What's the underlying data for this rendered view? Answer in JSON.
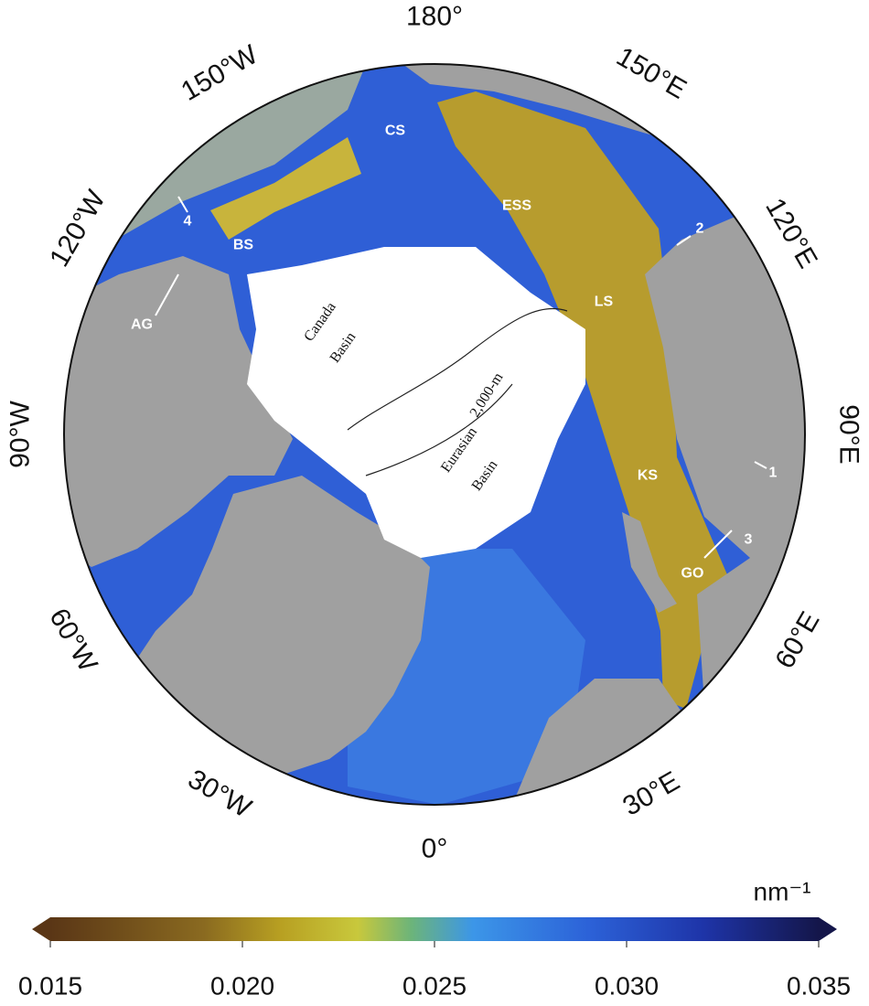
{
  "map": {
    "longitude_labels": [
      "180°",
      "150°E",
      "120°E",
      "90°E",
      "60°E",
      "30°E",
      "0°",
      "30°W",
      "60°W",
      "90°W",
      "120°W",
      "150°W"
    ],
    "region_labels": [
      "CS",
      "ESS",
      "BS",
      "LS",
      "KS",
      "GO",
      "AG",
      "4",
      "2",
      "1",
      "3"
    ],
    "basin_labels": [
      [
        "Canada",
        "Basin"
      ],
      [
        "Eurasian",
        "Basin"
      ]
    ],
    "contour_label": "2,000-m"
  },
  "colorbar": {
    "unit": "nm⁻¹",
    "lim": [
      0.015,
      0.035
    ],
    "ticks": [
      {
        "value": 0.015,
        "label": "0.015"
      },
      {
        "value": 0.02,
        "label": "0.020"
      },
      {
        "value": 0.025,
        "label": "0.025"
      },
      {
        "value": 0.03,
        "label": "0.030"
      },
      {
        "value": 0.035,
        "label": "0.035"
      }
    ]
  }
}
